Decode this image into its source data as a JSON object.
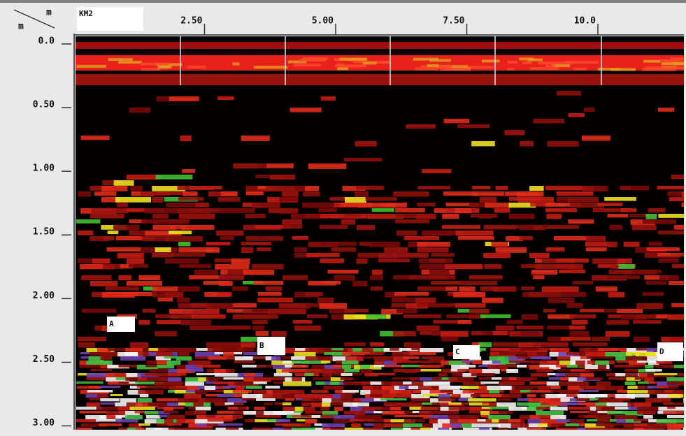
{
  "chart_data": {
    "type": "radargram",
    "corner_label": "KM2",
    "xlabel": "m",
    "ylabel": "m",
    "xlim": [
      0,
      11.6
    ],
    "ylim": [
      -0.06,
      3.03
    ],
    "xticks": [
      {
        "value": 2.5,
        "label": "2.50"
      },
      {
        "value": 5,
        "label": "5.00"
      },
      {
        "value": 7.5,
        "label": "7.50"
      },
      {
        "value": 10,
        "label": "10.0"
      }
    ],
    "yticks": [
      {
        "value": 0,
        "label": "0.0"
      },
      {
        "value": 0.5,
        "label": "0.50"
      },
      {
        "value": 1,
        "label": "1.00"
      },
      {
        "value": 1.5,
        "label": "1.50"
      },
      {
        "value": 2,
        "label": "2.00"
      },
      {
        "value": 2.5,
        "label": "2.50"
      },
      {
        "value": 3,
        "label": "3.00"
      }
    ],
    "annotations": [
      "A",
      "B",
      "C",
      "D"
    ]
  }
}
